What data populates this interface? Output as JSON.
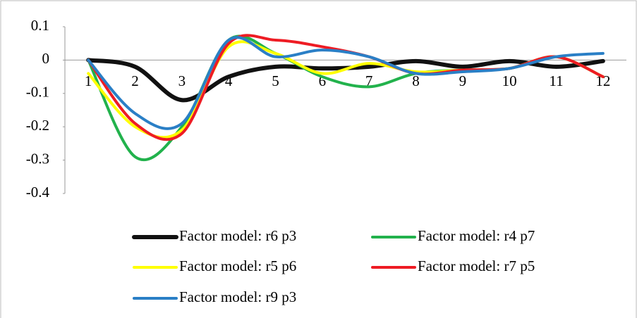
{
  "chart_data": {
    "type": "line",
    "categories": [
      "1",
      "2",
      "3",
      "4",
      "5",
      "6",
      "7",
      "8",
      "9",
      "10",
      "11",
      "12"
    ],
    "series": [
      {
        "name": "Factor model: r6 p3",
        "color": "#111111",
        "values": [
          0,
          -0.02,
          -0.12,
          -0.05,
          -0.02,
          -0.025,
          -0.02,
          -0.003,
          -0.02,
          -0.003,
          -0.02,
          -0.003
        ]
      },
      {
        "name": "Factor model: r4 p7",
        "color": "#22b24c",
        "values": [
          0,
          -0.29,
          -0.2,
          0.06,
          0.02,
          -0.05,
          -0.08,
          -0.04,
          -0.03,
          -0.025,
          0.01,
          -0.05
        ]
      },
      {
        "name": "Factor model: r5 p6",
        "color": "#ffff00",
        "values": [
          -0.04,
          -0.2,
          -0.21,
          0.04,
          0.02,
          -0.04,
          -0.01,
          -0.035,
          -0.03,
          -0.025,
          0.01,
          -0.05
        ]
      },
      {
        "name": "Factor model: r7 p5",
        "color": "#ee1c24",
        "values": [
          0,
          -0.19,
          -0.22,
          0.05,
          0.06,
          0.04,
          0.01,
          -0.04,
          -0.03,
          -0.025,
          0.01,
          -0.05
        ]
      },
      {
        "name": "Factor model: r9 p3",
        "color": "#2a7fc6",
        "values": [
          0,
          -0.16,
          -0.19,
          0.06,
          0.01,
          0.03,
          0.01,
          -0.04,
          -0.035,
          -0.025,
          0.01,
          0.02
        ]
      }
    ],
    "ylim": [
      -0.4,
      0.1
    ],
    "yticks": [
      0.1,
      0,
      -0.1,
      -0.2,
      -0.3,
      -0.4
    ]
  }
}
